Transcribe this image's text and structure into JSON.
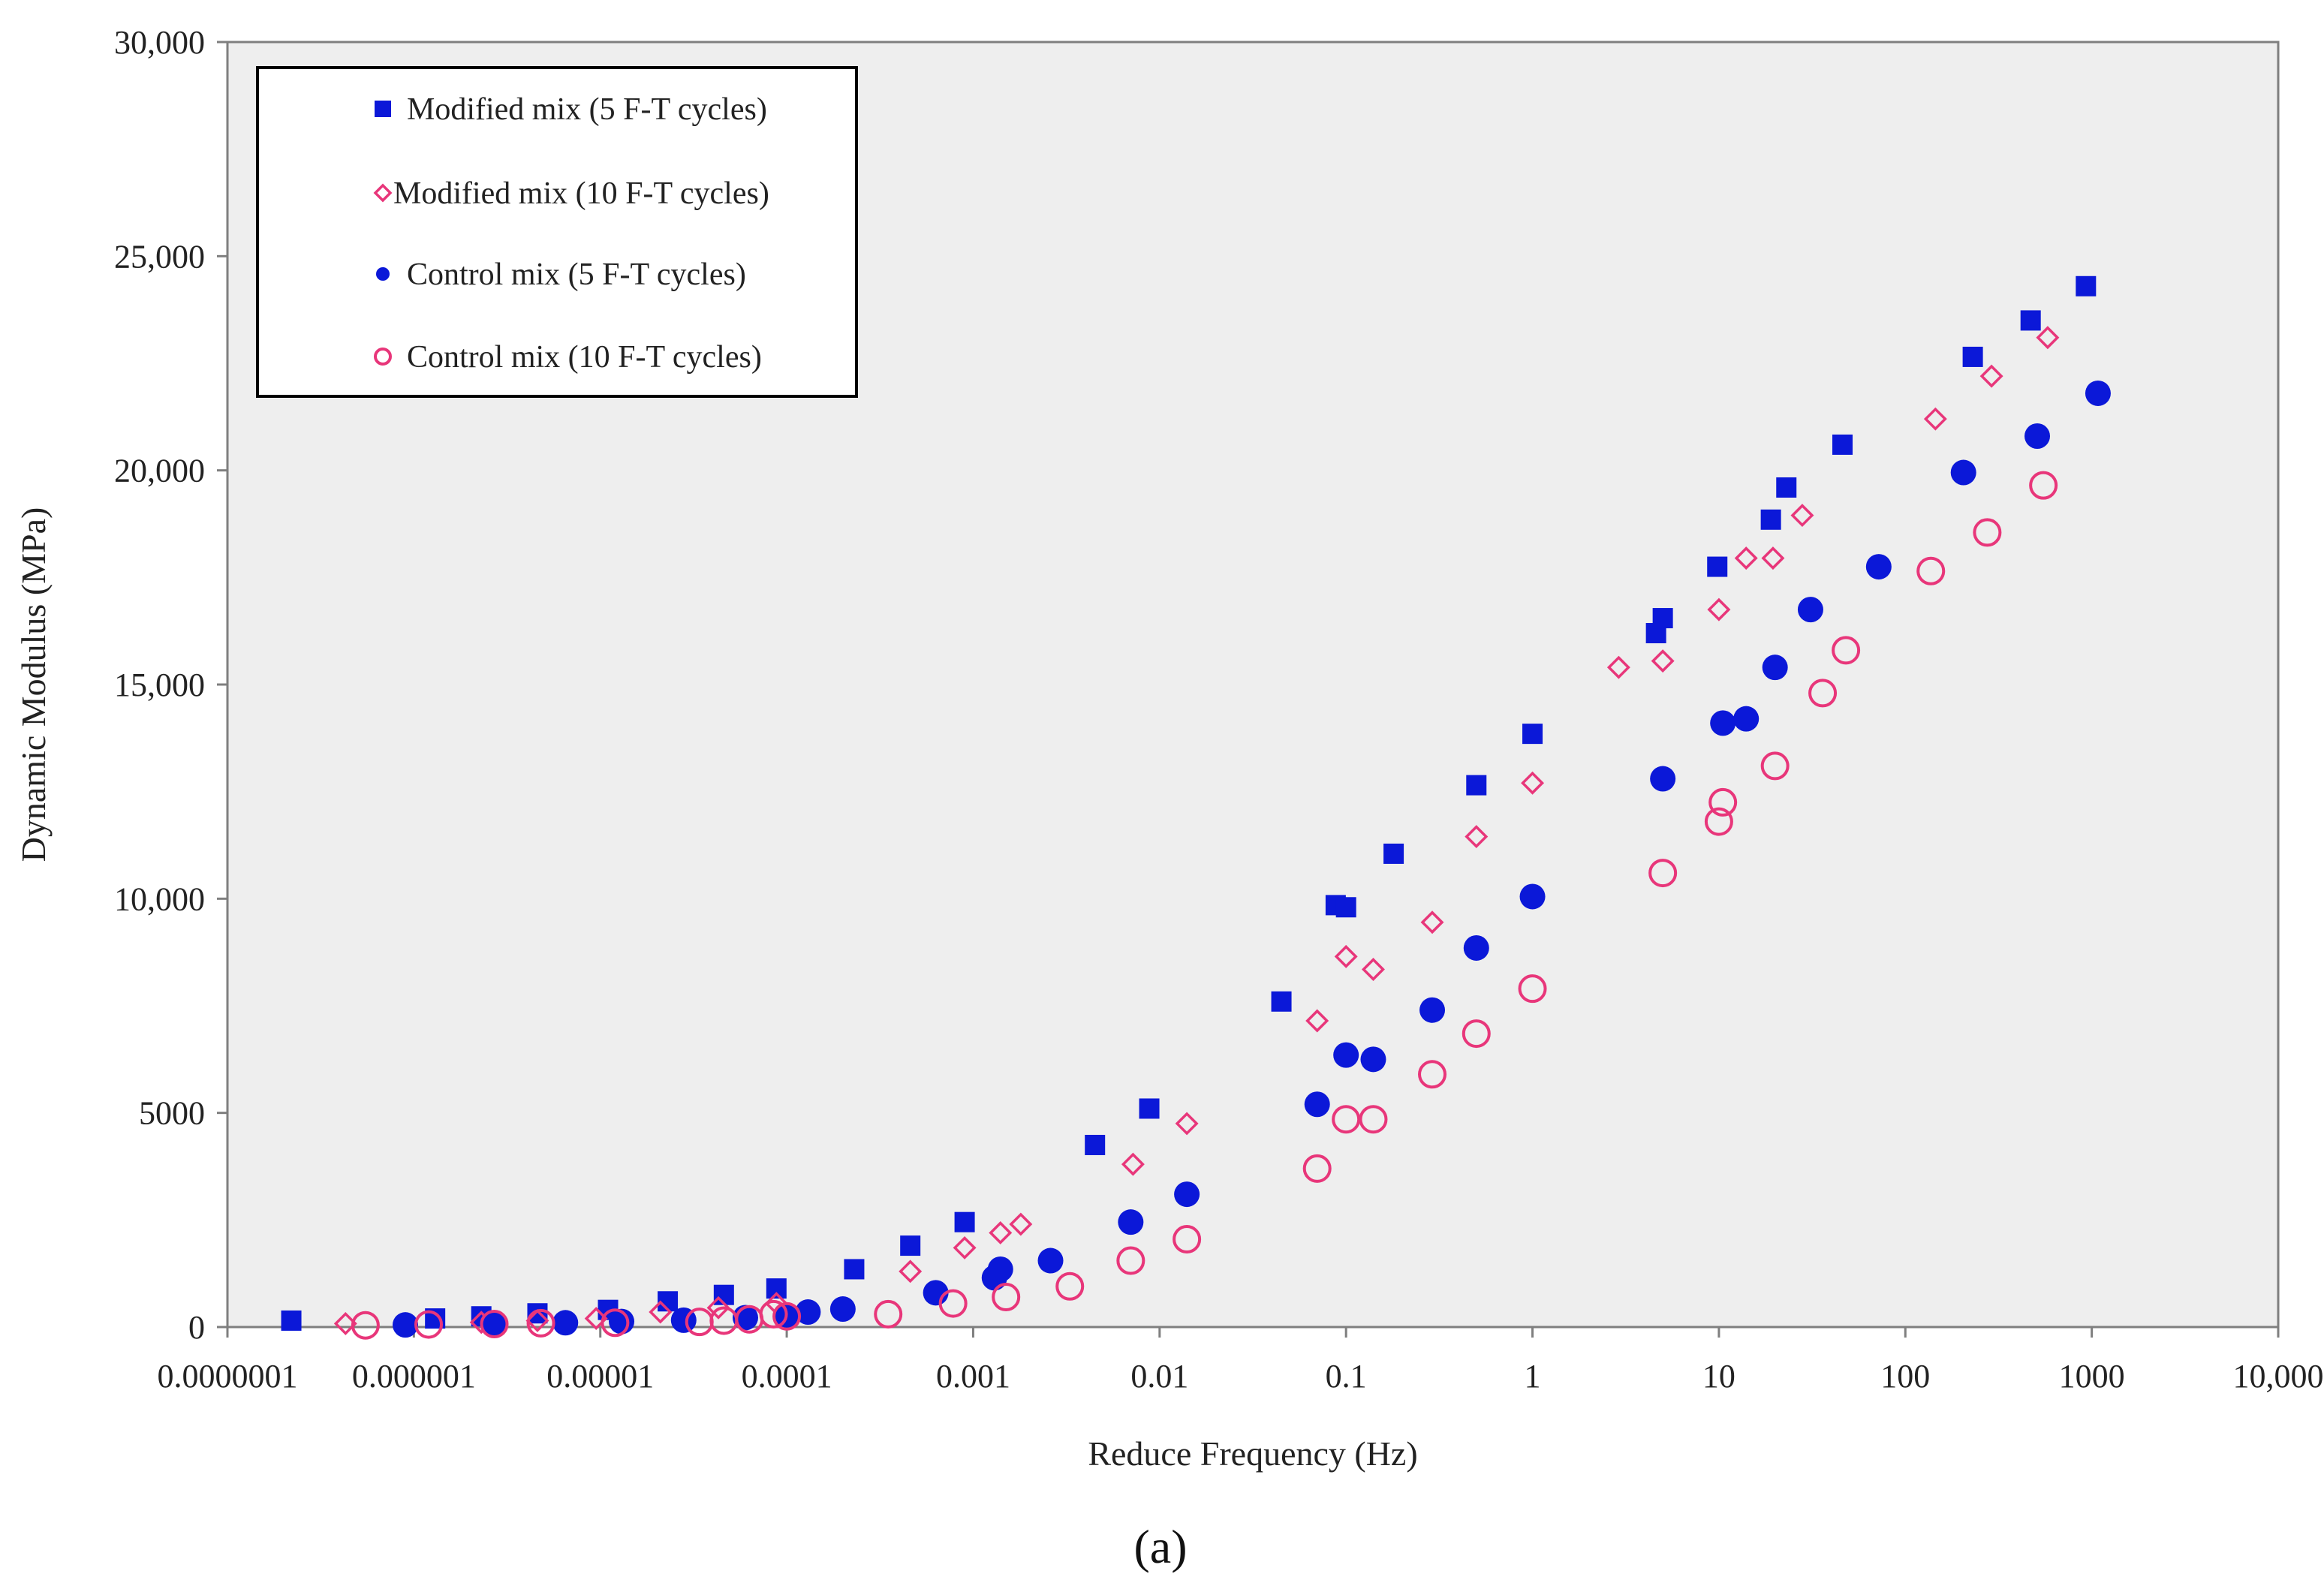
{
  "panel_label": "(a)",
  "colors": {
    "plot_background": "#eeeeee",
    "axis": "#7f7f7f",
    "mod5": "#0b18d8",
    "mod10": "#e8367a",
    "ctrl5": "#0b18d8",
    "ctrl10": "#e8367a"
  },
  "chart_data": {
    "type": "scatter",
    "title": "",
    "xlabel": "Reduce Frequency (Hz)",
    "ylabel": "Dynamic Modulus (MPa)",
    "x_scale": "log",
    "xlim": [
      1e-07,
      10000
    ],
    "ylim": [
      0,
      30000
    ],
    "x_ticks": [
      {
        "value": 1e-07,
        "label": "0.0000001"
      },
      {
        "value": 1e-06,
        "label": "0.000001"
      },
      {
        "value": 1e-05,
        "label": "0.00001"
      },
      {
        "value": 0.0001,
        "label": "0.0001"
      },
      {
        "value": 0.001,
        "label": "0.001"
      },
      {
        "value": 0.01,
        "label": "0.01"
      },
      {
        "value": 0.1,
        "label": "0.1"
      },
      {
        "value": 1,
        "label": "1"
      },
      {
        "value": 10,
        "label": "10"
      },
      {
        "value": 100,
        "label": "100"
      },
      {
        "value": 1000,
        "label": "1000"
      },
      {
        "value": 10000,
        "label": "10,000"
      }
    ],
    "y_ticks": [
      {
        "value": 0,
        "label": "0"
      },
      {
        "value": 5000,
        "label": "5000"
      },
      {
        "value": 10000,
        "label": "10,000"
      },
      {
        "value": 15000,
        "label": "15,000"
      },
      {
        "value": 20000,
        "label": "20,000"
      },
      {
        "value": 25000,
        "label": "25,000"
      },
      {
        "value": 30000,
        "label": "30,000"
      }
    ],
    "grid": false,
    "legend_position": "top-left",
    "series": [
      {
        "key": "mod5",
        "name": "Modified mix (5 F-T cycles)",
        "marker": "filled-square",
        "points": [
          [
            2.2e-07,
            150
          ],
          [
            1.3e-06,
            200
          ],
          [
            2.3e-06,
            250
          ],
          [
            4.6e-06,
            320
          ],
          [
            1.1e-05,
            400
          ],
          [
            2.3e-05,
            600
          ],
          [
            4.6e-05,
            750
          ],
          [
            8.8e-05,
            900
          ],
          [
            0.00023,
            1350
          ],
          [
            0.00046,
            1900
          ],
          [
            0.0009,
            2450
          ],
          [
            0.0045,
            4250
          ],
          [
            0.0088,
            5100
          ],
          [
            0.045,
            7600
          ],
          [
            0.088,
            9850
          ],
          [
            0.1,
            9800
          ],
          [
            0.18,
            11050
          ],
          [
            0.5,
            12650
          ],
          [
            1.0,
            13850
          ],
          [
            4.6,
            16200
          ],
          [
            5.0,
            16550
          ],
          [
            9.8,
            17750
          ],
          [
            19,
            18850
          ],
          [
            23,
            19600
          ],
          [
            46,
            20600
          ],
          [
            230,
            22650
          ],
          [
            470,
            23500
          ],
          [
            930,
            24300
          ]
        ]
      },
      {
        "key": "mod10",
        "name": "Modified mix  (10 F-T cycles)",
        "marker": "open-diamond",
        "points": [
          [
            4.3e-07,
            80
          ],
          [
            2.3e-06,
            110
          ],
          [
            4.6e-06,
            150
          ],
          [
            9.5e-06,
            200
          ],
          [
            2.1e-05,
            350
          ],
          [
            4.3e-05,
            450
          ],
          [
            8.8e-05,
            550
          ],
          [
            0.00046,
            1300
          ],
          [
            0.0009,
            1850
          ],
          [
            0.0014,
            2200
          ],
          [
            0.0018,
            2400
          ],
          [
            0.0072,
            3800
          ],
          [
            0.014,
            4750
          ],
          [
            0.07,
            7150
          ],
          [
            0.1,
            8650
          ],
          [
            0.14,
            8350
          ],
          [
            0.29,
            9450
          ],
          [
            0.5,
            11450
          ],
          [
            1.0,
            12700
          ],
          [
            2.9,
            15400
          ],
          [
            5.0,
            15550
          ],
          [
            10,
            16750
          ],
          [
            14,
            17950
          ],
          [
            19.5,
            17950
          ],
          [
            28,
            18950
          ],
          [
            145,
            21200
          ],
          [
            290,
            22200
          ],
          [
            580,
            23100
          ]
        ]
      },
      {
        "key": "ctrl5",
        "name": "Control mix (5 F-T cycles)",
        "marker": "filled-circle",
        "points": [
          [
            9e-07,
            50
          ],
          [
            2.7e-06,
            60
          ],
          [
            6.5e-06,
            100
          ],
          [
            1.3e-05,
            130
          ],
          [
            2.8e-05,
            160
          ],
          [
            6e-05,
            220
          ],
          [
            0.0001,
            280
          ],
          [
            0.00013,
            350
          ],
          [
            0.0002,
            420
          ],
          [
            0.00063,
            800
          ],
          [
            0.0013,
            1150
          ],
          [
            0.0014,
            1350
          ],
          [
            0.0026,
            1550
          ],
          [
            0.007,
            2450
          ],
          [
            0.014,
            3100
          ],
          [
            0.07,
            5200
          ],
          [
            0.1,
            6350
          ],
          [
            0.14,
            6250
          ],
          [
            0.29,
            7400
          ],
          [
            0.5,
            8850
          ],
          [
            1.0,
            10050
          ],
          [
            5.0,
            12800
          ],
          [
            10.5,
            14100
          ],
          [
            14,
            14200
          ],
          [
            20,
            15400
          ],
          [
            31,
            16750
          ],
          [
            72,
            17750
          ],
          [
            205,
            19950
          ],
          [
            510,
            20800
          ],
          [
            1080,
            21800
          ]
        ]
      },
      {
        "key": "ctrl10",
        "name": "Control mix (10 F-T cycles)",
        "marker": "open-circle",
        "points": [
          [
            5.5e-07,
            40
          ],
          [
            1.2e-06,
            60
          ],
          [
            2.7e-06,
            70
          ],
          [
            4.8e-06,
            90
          ],
          [
            1.2e-05,
            100
          ],
          [
            3.4e-05,
            120
          ],
          [
            4.6e-05,
            150
          ],
          [
            6.3e-05,
            180
          ],
          [
            8.5e-05,
            300
          ],
          [
            0.0001,
            250
          ],
          [
            0.00035,
            300
          ],
          [
            0.00078,
            550
          ],
          [
            0.0015,
            700
          ],
          [
            0.0033,
            950
          ],
          [
            0.007,
            1550
          ],
          [
            0.014,
            2050
          ],
          [
            0.07,
            3700
          ],
          [
            0.1,
            4850
          ],
          [
            0.14,
            4850
          ],
          [
            0.29,
            5900
          ],
          [
            0.5,
            6850
          ],
          [
            1.0,
            7900
          ],
          [
            5.0,
            10600
          ],
          [
            10,
            11800
          ],
          [
            10.5,
            12250
          ],
          [
            20,
            13100
          ],
          [
            36,
            14800
          ],
          [
            48,
            15800
          ],
          [
            137,
            17650
          ],
          [
            275,
            18550
          ],
          [
            550,
            19650
          ]
        ]
      }
    ]
  }
}
